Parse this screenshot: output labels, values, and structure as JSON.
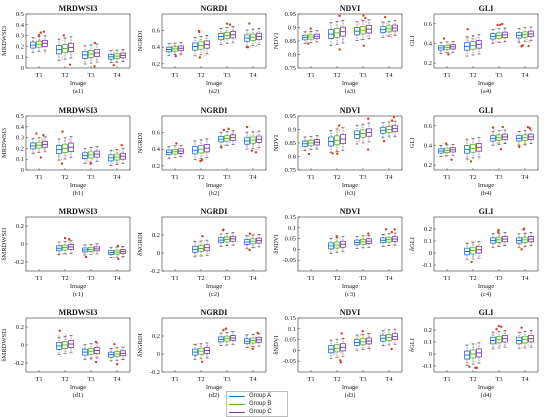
{
  "colors": {
    "A": "#1f77d4",
    "B": "#5cb82e",
    "C": "#7b3fa8",
    "outlier": "#d43d2a",
    "spread": "#f2b7b0"
  },
  "legend": [
    {
      "label": "Group A",
      "color": "#1f77d4"
    },
    {
      "label": "Group B",
      "color": "#5cb82e"
    },
    {
      "label": "Group C",
      "color": "#7b3fa8"
    }
  ],
  "chart_data": [
    {
      "type": "box",
      "title": "MRDWSI3",
      "ylabel": "MRDWSI3",
      "xlabel": "Image",
      "caption": "(a1)",
      "categories": [
        "T1",
        "T2",
        "T3",
        "T4"
      ],
      "ylim": [
        0,
        0.5
      ],
      "yticks": [
        0,
        0.1,
        0.2,
        0.3,
        0.4,
        0.5
      ],
      "ytick_labels": [
        "0",
        "0.1",
        "0.2",
        "0.3",
        "0.4",
        "0.5"
      ],
      "medians": [
        0.22,
        0.18,
        0.13,
        0.11
      ],
      "spread": [
        0.05,
        0.07,
        0.06,
        0.04
      ]
    },
    {
      "type": "box",
      "title": "NGRDI",
      "ylabel": "NGRDI",
      "xlabel": "Image",
      "caption": "(a2)",
      "categories": [
        "T1",
        "T2",
        "T3",
        "T4"
      ],
      "ylim": [
        0.15,
        0.8
      ],
      "yticks": [
        0.2,
        0.4,
        0.6
      ],
      "ytick_labels": [
        "0.2",
        "0.4",
        "0.6"
      ],
      "medians": [
        0.38,
        0.42,
        0.54,
        0.52
      ],
      "spread": [
        0.05,
        0.08,
        0.07,
        0.07
      ]
    },
    {
      "type": "box",
      "title": "NDVI",
      "ylabel": "NDVI",
      "xlabel": "Image",
      "caption": "(a3)",
      "categories": [
        "T1",
        "T2",
        "T3",
        "T4"
      ],
      "ylim": [
        0.75,
        0.95
      ],
      "yticks": [
        0.75,
        0.8,
        0.85,
        0.9,
        0.95
      ],
      "ytick_labels": [
        "0.75",
        "0.8",
        "0.85",
        "0.9",
        "0.95"
      ],
      "medians": [
        0.865,
        0.88,
        0.89,
        0.895
      ],
      "spread": [
        0.015,
        0.03,
        0.025,
        0.02
      ]
    },
    {
      "type": "box",
      "title": "GLI",
      "ylabel": "GLI",
      "xlabel": "Image",
      "caption": "(a4)",
      "categories": [
        "T1",
        "T2",
        "T3",
        "T4"
      ],
      "ylim": [
        0.15,
        0.7
      ],
      "yticks": [
        0.2,
        0.4,
        0.6
      ],
      "ytick_labels": [
        "0.2",
        "0.4",
        "0.6"
      ],
      "medians": [
        0.36,
        0.38,
        0.48,
        0.49
      ],
      "spread": [
        0.04,
        0.07,
        0.05,
        0.05
      ]
    },
    {
      "type": "box",
      "title": "MRDWSI3",
      "ylabel": "MRDWSI3",
      "xlabel": "Image",
      "caption": "(b1)",
      "categories": [
        "T1",
        "T2",
        "T3",
        "T4"
      ],
      "ylim": [
        0,
        0.5
      ],
      "yticks": [
        0,
        0.1,
        0.2,
        0.3,
        0.4,
        0.5
      ],
      "ytick_labels": [
        "0",
        "0.1",
        "0.2",
        "0.3",
        "0.4",
        "0.5"
      ],
      "medians": [
        0.23,
        0.2,
        0.14,
        0.12
      ],
      "spread": [
        0.05,
        0.07,
        0.05,
        0.05
      ]
    },
    {
      "type": "box",
      "title": "NGRDI",
      "ylabel": "NGRDI",
      "xlabel": "Image",
      "caption": "(b2)",
      "categories": [
        "T1",
        "T2",
        "T3",
        "T4"
      ],
      "ylim": [
        0.15,
        0.8
      ],
      "yticks": [
        0.2,
        0.4,
        0.6
      ],
      "ytick_labels": [
        "0.2",
        "0.4",
        "0.6"
      ],
      "medians": [
        0.37,
        0.4,
        0.53,
        0.51
      ],
      "spread": [
        0.05,
        0.08,
        0.06,
        0.07
      ]
    },
    {
      "type": "box",
      "title": "NDVI",
      "ylabel": "NDVI",
      "xlabel": "Image",
      "caption": "(b3)",
      "categories": [
        "T1",
        "T2",
        "T3",
        "T4"
      ],
      "ylim": [
        0.75,
        0.95
      ],
      "yticks": [
        0.75,
        0.8,
        0.85,
        0.9,
        0.95
      ],
      "ytick_labels": [
        "0.75",
        "0.8",
        "0.85",
        "0.9",
        "0.95"
      ],
      "medians": [
        0.85,
        0.86,
        0.885,
        0.9
      ],
      "spread": [
        0.018,
        0.03,
        0.025,
        0.02
      ]
    },
    {
      "type": "box",
      "title": "GLI",
      "ylabel": "GLI",
      "xlabel": "Image",
      "caption": "(b4)",
      "categories": [
        "T1",
        "T2",
        "T3",
        "T4"
      ],
      "ylim": [
        0.15,
        0.7
      ],
      "yticks": [
        0.2,
        0.4,
        0.6
      ],
      "ytick_labels": [
        "0.2",
        "0.4",
        "0.6"
      ],
      "medians": [
        0.35,
        0.37,
        0.48,
        0.48
      ],
      "spread": [
        0.04,
        0.07,
        0.05,
        0.05
      ]
    },
    {
      "type": "box",
      "title": "MRDWSI3",
      "ylabel": "δMRDWSI3",
      "xlabel": "Image",
      "caption": "(c1)",
      "categories": [
        "T1",
        "T2",
        "T3",
        "T4"
      ],
      "ylim": [
        -0.3,
        0.3
      ],
      "yticks": [
        -0.2,
        0,
        0.2
      ],
      "ytick_labels": [
        "-0.2",
        "0",
        "0.2"
      ],
      "medians": [
        null,
        -0.04,
        -0.06,
        -0.09
      ],
      "spread": [
        0,
        0.05,
        0.04,
        0.04
      ]
    },
    {
      "type": "box",
      "title": "NGRDI",
      "ylabel": "δNGRDI",
      "xlabel": "Image",
      "caption": "(c2)",
      "categories": [
        "T1",
        "T2",
        "T3",
        "T4"
      ],
      "ylim": [
        -0.2,
        0.4
      ],
      "yticks": [
        -0.2,
        0,
        0.2
      ],
      "ytick_labels": [
        "-0.2",
        "0",
        "0.2"
      ],
      "medians": [
        null,
        0.05,
        0.15,
        0.13
      ],
      "spread": [
        0,
        0.06,
        0.05,
        0.05
      ]
    },
    {
      "type": "box",
      "title": "NDVI",
      "ylabel": "δNDVI",
      "xlabel": "Image",
      "caption": "(c3)",
      "categories": [
        "T1",
        "T2",
        "T3",
        "T4"
      ],
      "ylim": [
        -0.1,
        0.15
      ],
      "yticks": [
        -0.05,
        0,
        0.05,
        0.1,
        0.15
      ],
      "ytick_labels": [
        "-0.05",
        "0",
        "0.05",
        "0.1",
        "0.15"
      ],
      "medians": [
        null,
        0.02,
        0.035,
        0.045
      ],
      "spread": [
        0,
        0.025,
        0.02,
        0.02
      ]
    },
    {
      "type": "box",
      "title": "GLI",
      "ylabel": "δGLI",
      "xlabel": "Image",
      "caption": "(c4)",
      "categories": [
        "T1",
        "T2",
        "T3",
        "T4"
      ],
      "ylim": [
        -0.15,
        0.3
      ],
      "yticks": [
        -0.1,
        0,
        0.1,
        0.2
      ],
      "ytick_labels": [
        "-0.1",
        "0",
        "0.1",
        "0.2"
      ],
      "medians": [
        null,
        0.02,
        0.11,
        0.11
      ],
      "spread": [
        0,
        0.05,
        0.04,
        0.04
      ]
    },
    {
      "type": "box",
      "title": "MRDWSI3",
      "ylabel": "δMRDWSI3",
      "xlabel": "Image",
      "caption": "(d1)",
      "categories": [
        "T1",
        "T2",
        "T3",
        "T4"
      ],
      "ylim": [
        -0.3,
        0.3
      ],
      "yticks": [
        -0.2,
        0,
        0.2
      ],
      "ytick_labels": [
        "-0.2",
        "0",
        "0.2"
      ],
      "medians": [
        null,
        0.0,
        -0.07,
        -0.1
      ],
      "spread": [
        0,
        0.07,
        0.06,
        0.05
      ]
    },
    {
      "type": "box",
      "title": "NGRDI",
      "ylabel": "δNGRDI",
      "xlabel": "Image",
      "caption": "(d2)",
      "categories": [
        "T1",
        "T2",
        "T3",
        "T4"
      ],
      "ylim": [
        -0.2,
        0.4
      ],
      "yticks": [
        -0.2,
        0,
        0.2
      ],
      "ytick_labels": [
        "-0.2",
        "0",
        "0.2"
      ],
      "medians": [
        null,
        0.03,
        0.17,
        0.15
      ],
      "spread": [
        0,
        0.06,
        0.05,
        0.05
      ]
    },
    {
      "type": "box",
      "title": "NDVI",
      "ylabel": "δNDVI",
      "xlabel": "Image",
      "caption": "(d3)",
      "categories": [
        "T1",
        "T2",
        "T3",
        "T4"
      ],
      "ylim": [
        -0.1,
        0.15
      ],
      "yticks": [
        -0.05,
        0,
        0.05,
        0.1,
        0.15
      ],
      "ytick_labels": [
        "-0.05",
        "0",
        "0.05",
        "0.1",
        "0.15"
      ],
      "medians": [
        null,
        0.01,
        0.04,
        0.06
      ],
      "spread": [
        0,
        0.03,
        0.025,
        0.025
      ]
    },
    {
      "type": "box",
      "title": "GLI",
      "ylabel": "δGLI",
      "xlabel": "Image",
      "caption": "(d4)",
      "categories": [
        "T1",
        "T2",
        "T3",
        "T4"
      ],
      "ylim": [
        -0.15,
        0.3
      ],
      "yticks": [
        -0.1,
        0,
        0.1,
        0.2
      ],
      "ytick_labels": [
        "-0.1",
        "0",
        "0.1",
        "0.2"
      ],
      "medians": [
        null,
        0.0,
        0.12,
        0.12
      ],
      "spread": [
        0,
        0.06,
        0.05,
        0.05
      ]
    }
  ]
}
